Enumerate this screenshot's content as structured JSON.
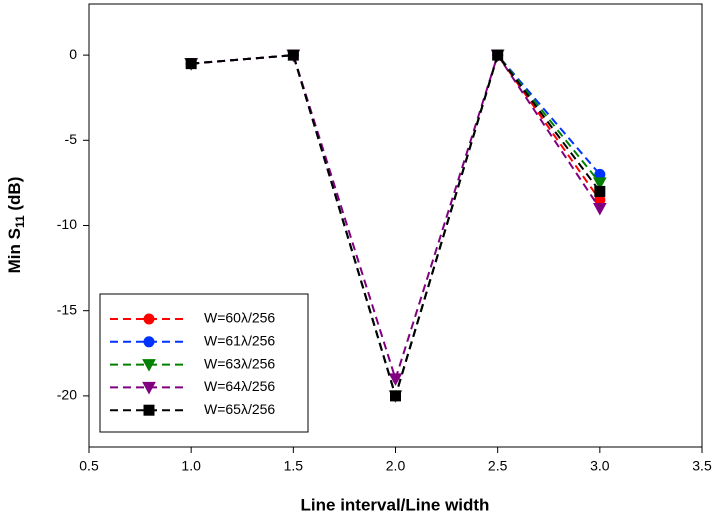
{
  "chart_data": {
    "type": "line",
    "xlabel": "Line interval/Line width",
    "ylabel": {
      "text": "Min S",
      "subscript": "11",
      "suffix": " (dB)"
    },
    "x": [
      1.0,
      1.5,
      2.0,
      2.5,
      3.0
    ],
    "series": [
      {
        "name": "W=60λ/256",
        "color": "#ff0000",
        "marker": "circle",
        "values": [
          -0.5,
          0,
          -20,
          0,
          -8.5
        ]
      },
      {
        "name": "W=61λ/256",
        "color": "#0033ff",
        "marker": "circle",
        "values": [
          -0.5,
          0,
          -20,
          0,
          -7
        ]
      },
      {
        "name": "W=63λ/256",
        "color": "#008000",
        "marker": "triangle-down",
        "values": [
          -0.5,
          0,
          -20,
          0,
          -7.5
        ]
      },
      {
        "name": "W=64λ/256",
        "color": "#800080",
        "marker": "triangle-down",
        "values": [
          -0.5,
          0,
          -19,
          0,
          -9
        ]
      },
      {
        "name": "W=65λ/256",
        "color": "#000000",
        "marker": "square",
        "values": [
          -0.5,
          0,
          -20,
          0,
          -8
        ]
      }
    ],
    "xlim": [
      0.5,
      3.5
    ],
    "xticks": [
      {
        "value": 0.5,
        "label": "0.5"
      },
      {
        "value": 1,
        "label": "1.0"
      },
      {
        "value": 1.5,
        "label": "1.5"
      },
      {
        "value": 2,
        "label": "2.0"
      },
      {
        "value": 2.5,
        "label": "2.5"
      },
      {
        "value": 3,
        "label": "3.0"
      },
      {
        "value": 3.5,
        "label": "3.5"
      }
    ],
    "ylim": [
      -23,
      3
    ],
    "yticks": [
      0,
      -5,
      -10,
      -15,
      -20
    ],
    "legend": "lower-left"
  }
}
